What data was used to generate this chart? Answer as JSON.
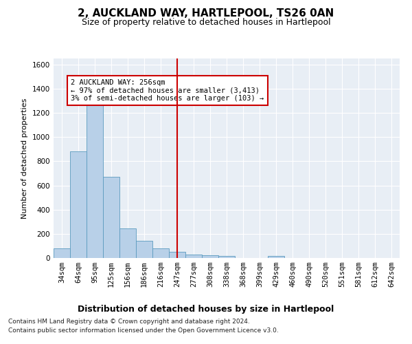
{
  "title1": "2, AUCKLAND WAY, HARTLEPOOL, TS26 0AN",
  "title2": "Size of property relative to detached houses in Hartlepool",
  "xlabel": "Distribution of detached houses by size in Hartlepool",
  "ylabel": "Number of detached properties",
  "footer1": "Contains HM Land Registry data © Crown copyright and database right 2024.",
  "footer2": "Contains public sector information licensed under the Open Government Licence v3.0.",
  "bin_labels": [
    "34sqm",
    "64sqm",
    "95sqm",
    "125sqm",
    "156sqm",
    "186sqm",
    "216sqm",
    "247sqm",
    "277sqm",
    "308sqm",
    "338sqm",
    "368sqm",
    "399sqm",
    "429sqm",
    "460sqm",
    "490sqm",
    "520sqm",
    "551sqm",
    "581sqm",
    "612sqm",
    "642sqm"
  ],
  "bar_values": [
    80,
    880,
    1320,
    670,
    245,
    140,
    80,
    50,
    28,
    25,
    15,
    0,
    0,
    15,
    0,
    0,
    0,
    0,
    0,
    0,
    0
  ],
  "bar_color": "#b8d0e8",
  "bar_edge_color": "#5a9abf",
  "vline_color": "#cc0000",
  "vline_pos": 7.0,
  "annotation_text": "2 AUCKLAND WAY: 256sqm\n← 97% of detached houses are smaller (3,413)\n3% of semi-detached houses are larger (103) →",
  "annotation_box_color": "#cc0000",
  "ylim": [
    0,
    1650
  ],
  "yticks": [
    0,
    200,
    400,
    600,
    800,
    1000,
    1200,
    1400,
    1600
  ],
  "background_color": "#e8eef5",
  "grid_color": "#ffffff",
  "title1_fontsize": 11,
  "title2_fontsize": 9,
  "xlabel_fontsize": 9,
  "ylabel_fontsize": 8,
  "tick_fontsize": 7.5,
  "annotation_fontsize": 7.5,
  "footer_fontsize": 6.5
}
